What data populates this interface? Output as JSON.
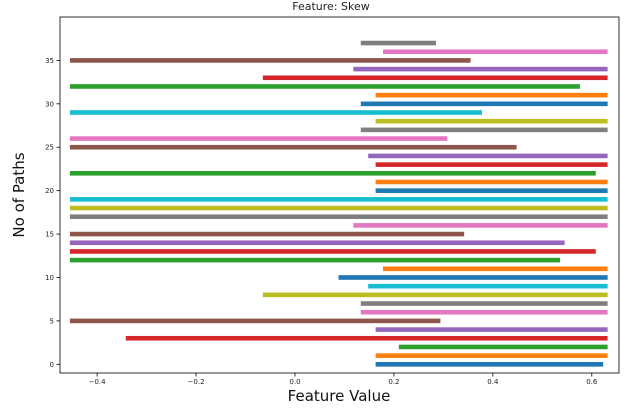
{
  "chart_data": {
    "type": "bar",
    "orientation": "horizontal",
    "title": "Feature: Skew",
    "xlabel": "Feature Value",
    "ylabel": "No of Paths",
    "xlim": [
      -0.475,
      0.655
    ],
    "ylim": [
      -1,
      40
    ],
    "xticks": [
      -0.4,
      -0.2,
      0.0,
      0.2,
      0.4,
      0.6
    ],
    "xtick_labels": [
      "−0.4",
      "−0.2",
      "0.0",
      "0.2",
      "0.4",
      "0.6"
    ],
    "yticks": [
      0,
      5,
      10,
      15,
      20,
      25,
      30,
      35
    ],
    "ytick_labels": [
      "0",
      "5",
      "10",
      "15",
      "20",
      "25",
      "30",
      "35"
    ],
    "grid": false,
    "legend": false,
    "color_cycle": [
      "#1f77b4",
      "#ff7f0e",
      "#2ca02c",
      "#d62728",
      "#9467bd",
      "#8c564b",
      "#e377c2",
      "#7f7f7f",
      "#bcbd22",
      "#17becf"
    ],
    "bars": [
      {
        "y": 0,
        "left": 0.163,
        "right": 0.623
      },
      {
        "y": 1,
        "left": 0.163,
        "right": 0.632
      },
      {
        "y": 2,
        "left": 0.21,
        "right": 0.632
      },
      {
        "y": 3,
        "left": -0.342,
        "right": 0.632
      },
      {
        "y": 4,
        "left": 0.163,
        "right": 0.632
      },
      {
        "y": 5,
        "left": -0.455,
        "right": 0.294
      },
      {
        "y": 6,
        "left": 0.133,
        "right": 0.632
      },
      {
        "y": 7,
        "left": 0.133,
        "right": 0.632
      },
      {
        "y": 8,
        "left": -0.065,
        "right": 0.632
      },
      {
        "y": 9,
        "left": 0.148,
        "right": 0.632
      },
      {
        "y": 10,
        "left": 0.088,
        "right": 0.632
      },
      {
        "y": 11,
        "left": 0.178,
        "right": 0.632
      },
      {
        "y": 12,
        "left": -0.455,
        "right": 0.536
      },
      {
        "y": 13,
        "left": -0.455,
        "right": 0.608
      },
      {
        "y": 14,
        "left": -0.455,
        "right": 0.545
      },
      {
        "y": 15,
        "left": -0.455,
        "right": 0.342
      },
      {
        "y": 16,
        "left": 0.118,
        "right": 0.632
      },
      {
        "y": 17,
        "left": -0.455,
        "right": 0.632
      },
      {
        "y": 18,
        "left": -0.455,
        "right": 0.632
      },
      {
        "y": 19,
        "left": -0.455,
        "right": 0.632
      },
      {
        "y": 20,
        "left": 0.163,
        "right": 0.632
      },
      {
        "y": 21,
        "left": 0.163,
        "right": 0.632
      },
      {
        "y": 22,
        "left": -0.455,
        "right": 0.608
      },
      {
        "y": 23,
        "left": 0.163,
        "right": 0.632
      },
      {
        "y": 24,
        "left": 0.148,
        "right": 0.632
      },
      {
        "y": 25,
        "left": -0.455,
        "right": 0.448
      },
      {
        "y": 26,
        "left": -0.455,
        "right": 0.308
      },
      {
        "y": 27,
        "left": 0.133,
        "right": 0.632
      },
      {
        "y": 28,
        "left": 0.163,
        "right": 0.632
      },
      {
        "y": 29,
        "left": -0.455,
        "right": 0.378
      },
      {
        "y": 30,
        "left": 0.133,
        "right": 0.632
      },
      {
        "y": 31,
        "left": 0.163,
        "right": 0.632
      },
      {
        "y": 32,
        "left": -0.455,
        "right": 0.576
      },
      {
        "y": 33,
        "left": -0.065,
        "right": 0.632
      },
      {
        "y": 34,
        "left": 0.118,
        "right": 0.632
      },
      {
        "y": 35,
        "left": -0.455,
        "right": 0.355
      },
      {
        "y": 36,
        "left": 0.178,
        "right": 0.632
      },
      {
        "y": 37,
        "left": 0.133,
        "right": 0.285
      }
    ]
  }
}
